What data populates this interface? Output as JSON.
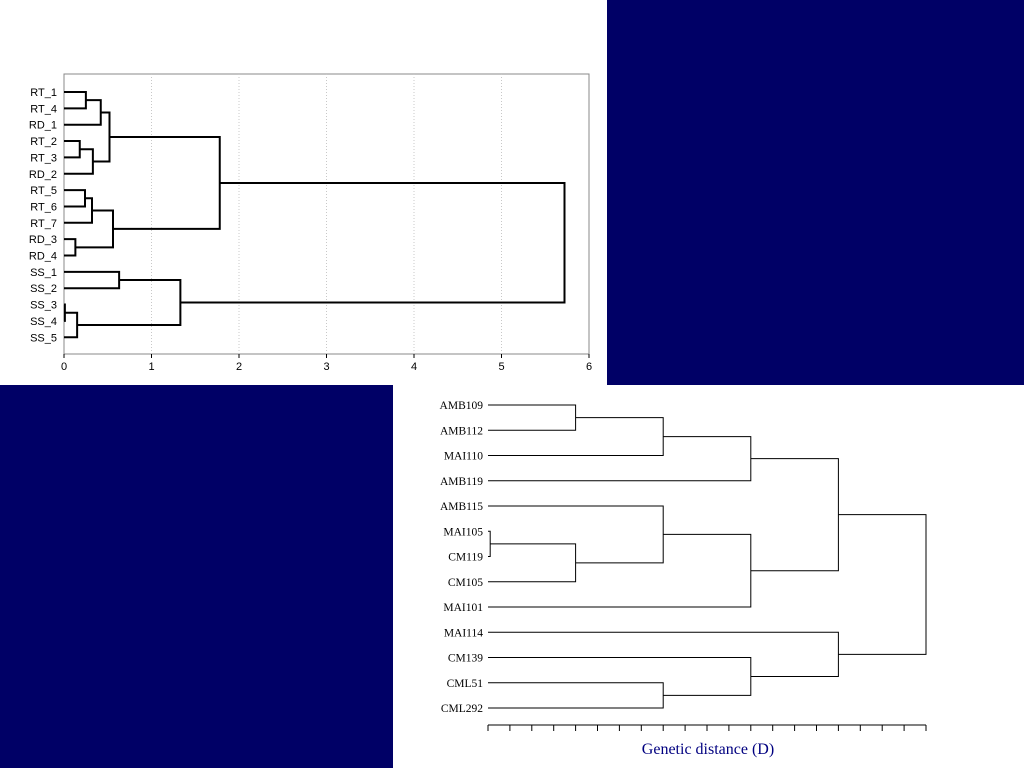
{
  "colors": {
    "background_blue": "#000066",
    "panel": "#ffffff",
    "axis_label_color": "#000080"
  },
  "chart_data": [
    {
      "type": "dendrogram",
      "title": "",
      "xlabel": "",
      "ylabel": "",
      "xlim": [
        0,
        6
      ],
      "x_ticks": [
        "0",
        "1",
        "2",
        "3",
        "4",
        "5",
        "6"
      ],
      "grid": "vertical dotted",
      "leaves": [
        "RT_1",
        "RT_4",
        "RD_1",
        "RT_2",
        "RT_3",
        "RD_2",
        "RT_5",
        "RT_6",
        "RT_7",
        "RD_3",
        "RD_4",
        "SS_1",
        "SS_2",
        "SS_3",
        "SS_4",
        "SS_5"
      ],
      "merges": [
        {
          "a": 0,
          "b": 1,
          "height": 0.25
        },
        {
          "a": 16,
          "b": 2,
          "height": 0.42
        },
        {
          "a": 3,
          "b": 4,
          "height": 0.18
        },
        {
          "a": 18,
          "b": 5,
          "height": 0.33
        },
        {
          "a": 17,
          "b": 19,
          "height": 0.52
        },
        {
          "a": 6,
          "b": 7,
          "height": 0.24
        },
        {
          "a": 21,
          "b": 8,
          "height": 0.32
        },
        {
          "a": 9,
          "b": 10,
          "height": 0.13
        },
        {
          "a": 22,
          "b": 23,
          "height": 0.56
        },
        {
          "a": 20,
          "b": 24,
          "height": 1.78
        },
        {
          "a": 11,
          "b": 12,
          "height": 0.63
        },
        {
          "a": 13,
          "b": 14,
          "height": 0.01
        },
        {
          "a": 27,
          "b": 15,
          "height": 0.15
        },
        {
          "a": 26,
          "b": 28,
          "height": 1.33
        },
        {
          "a": 25,
          "b": 29,
          "height": 5.72
        }
      ]
    },
    {
      "type": "dendrogram",
      "title": "",
      "xlabel": "Genetic distance (D)",
      "ylabel": "",
      "xlim": [
        0,
        20
      ],
      "x_ticks": [],
      "leaves": [
        "AMB109",
        "AMB112",
        "MAI110",
        "AMB119",
        "AMB115",
        "MAI105",
        "CM119",
        "CM105",
        "MAI101",
        "MAI114",
        "CM139",
        "CML51",
        "CML292"
      ],
      "merges": [
        {
          "a": 0,
          "b": 1,
          "height": 4
        },
        {
          "a": 13,
          "b": 2,
          "height": 8
        },
        {
          "a": 14,
          "b": 3,
          "height": 12
        },
        {
          "a": 5,
          "b": 6,
          "height": 0.1
        },
        {
          "a": 16,
          "b": 7,
          "height": 4
        },
        {
          "a": 4,
          "b": 17,
          "height": 8
        },
        {
          "a": 18,
          "b": 8,
          "height": 12
        },
        {
          "a": 15,
          "b": 19,
          "height": 16
        },
        {
          "a": 11,
          "b": 12,
          "height": 8
        },
        {
          "a": 10,
          "b": 21,
          "height": 12
        },
        {
          "a": 9,
          "b": 22,
          "height": 16
        },
        {
          "a": 20,
          "b": 23,
          "height": 20
        }
      ]
    }
  ]
}
